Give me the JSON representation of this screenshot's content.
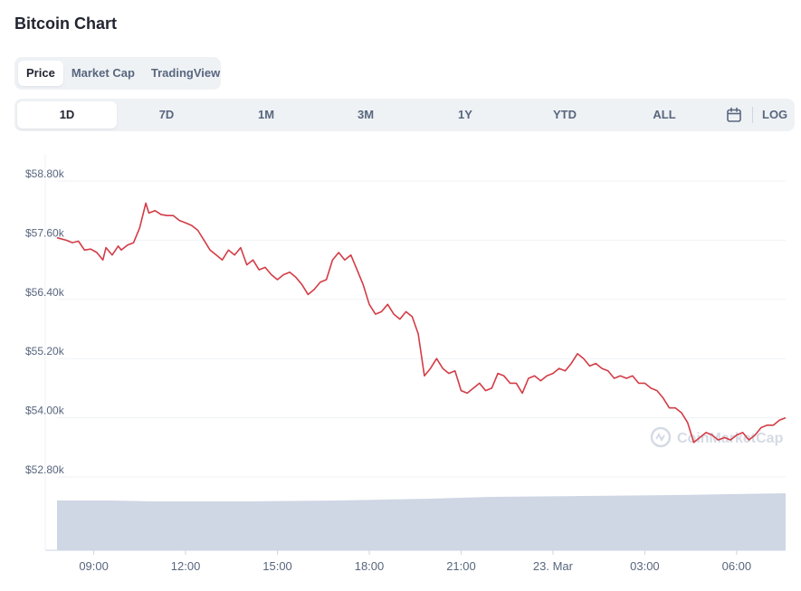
{
  "title": "Bitcoin Chart",
  "type_tabs": [
    "Price",
    "Market Cap",
    "TradingView"
  ],
  "active_type": "Price",
  "ranges": [
    "1D",
    "7D",
    "1M",
    "3M",
    "1Y",
    "YTD",
    "ALL"
  ],
  "active_range": "1D",
  "calendar_icon": "calendar-icon",
  "log_label": "LOG",
  "watermark": "CoinMarketCap",
  "colors": {
    "line": "#d33c46",
    "volume": "#cfd6e4",
    "grid": "#eff2f5",
    "text": "#58667e",
    "title": "#222531",
    "tab_bg": "#eff2f5"
  },
  "chart_data": {
    "type": "line",
    "title": "",
    "xlabel": "",
    "ylabel": "",
    "yticks": [
      "$52.80k",
      "$54.00k",
      "$55.20k",
      "$56.40k",
      "$57.60k",
      "$58.80k"
    ],
    "ytick_values": [
      52800,
      54000,
      55200,
      56400,
      57600,
      58800
    ],
    "ylim": [
      52650,
      58950
    ],
    "xticks": [
      "09:00",
      "12:00",
      "15:00",
      "18:00",
      "21:00",
      "23. Mar",
      "03:00",
      "06:00"
    ],
    "xtick_hours": [
      9,
      12,
      15,
      18,
      21,
      24,
      27,
      30
    ],
    "xlim_hours": [
      7.8,
      31.6
    ],
    "grid": true,
    "series": [
      {
        "kind": "price",
        "x": [
          7.8,
          8.1,
          8.3,
          8.5,
          8.7,
          8.9,
          9.1,
          9.3,
          9.4,
          9.6,
          9.8,
          9.9,
          10.1,
          10.3,
          10.5,
          10.7,
          10.8,
          11.0,
          11.2,
          11.4,
          11.6,
          11.8,
          12.0,
          12.2,
          12.4,
          12.6,
          12.8,
          13.0,
          13.2,
          13.4,
          13.6,
          13.8,
          14.0,
          14.2,
          14.4,
          14.6,
          14.8,
          15.0,
          15.2,
          15.4,
          15.6,
          15.8,
          16.0,
          16.2,
          16.4,
          16.6,
          16.8,
          17.0,
          17.2,
          17.4,
          17.6,
          17.8,
          18.0,
          18.2,
          18.4,
          18.6,
          18.8,
          19.0,
          19.2,
          19.4,
          19.6,
          19.8,
          20.0,
          20.2,
          20.4,
          20.6,
          20.8,
          21.0,
          21.2,
          21.4,
          21.6,
          21.8,
          22.0,
          22.2,
          22.4,
          22.6,
          22.8,
          23.0,
          23.2,
          23.4,
          23.6,
          23.8,
          24.0,
          24.2,
          24.4,
          24.6,
          24.8,
          25.0,
          25.2,
          25.4,
          25.6,
          25.8,
          26.0,
          26.2,
          26.4,
          26.6,
          26.8,
          27.0,
          27.2,
          27.4,
          27.6,
          27.8,
          28.0,
          28.2,
          28.4,
          28.6,
          28.8,
          29.0,
          29.2,
          29.4,
          29.6,
          29.8,
          30.0,
          30.2,
          30.4,
          30.6,
          30.8,
          31.0,
          31.2,
          31.4,
          31.6
        ],
        "y": [
          57650,
          57600,
          57550,
          57580,
          57400,
          57420,
          57350,
          57200,
          57450,
          57300,
          57480,
          57400,
          57500,
          57550,
          57850,
          58350,
          58150,
          58200,
          58120,
          58100,
          58100,
          58000,
          57950,
          57900,
          57800,
          57600,
          57400,
          57300,
          57200,
          57400,
          57300,
          57450,
          57100,
          57200,
          57000,
          57050,
          56900,
          56800,
          56900,
          56950,
          56850,
          56700,
          56500,
          56600,
          56750,
          56800,
          57200,
          57350,
          57200,
          57300,
          57000,
          56700,
          56300,
          56100,
          56150,
          56300,
          56100,
          56000,
          56150,
          56050,
          55700,
          54850,
          55000,
          55200,
          55000,
          54900,
          54950,
          54550,
          54500,
          54600,
          54700,
          54550,
          54600,
          54900,
          54850,
          54700,
          54700,
          54500,
          54800,
          54850,
          54750,
          54850,
          54900,
          55000,
          54950,
          55100,
          55300,
          55200,
          55050,
          55100,
          55000,
          54950,
          54800,
          54850,
          54800,
          54850,
          54700,
          54700,
          54600,
          54550,
          54400,
          54200,
          54200,
          54100,
          53900,
          53500,
          53600,
          53700,
          53650,
          53550,
          53600,
          53550,
          53650,
          53700,
          53550,
          53650,
          53800,
          53850,
          53850,
          53950,
          54000
        ]
      },
      {
        "kind": "volume",
        "x": [
          7.8,
          9.5,
          11.0,
          14.0,
          17.0,
          20.0,
          22.0,
          25.0,
          28.0,
          31.6
        ],
        "y": [
          55,
          55,
          54,
          54,
          55,
          57,
          59,
          60,
          61,
          63
        ]
      }
    ]
  }
}
